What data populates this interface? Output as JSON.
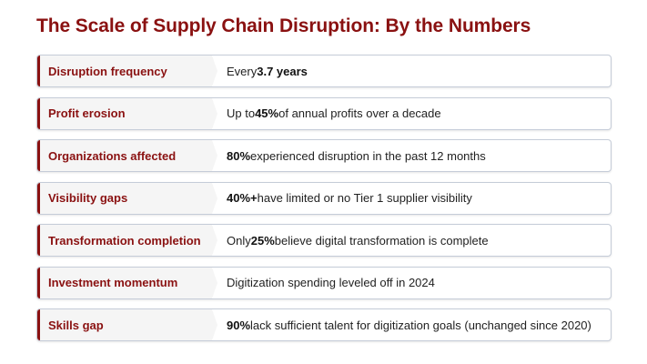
{
  "title": "The Scale of Supply Chain Disruption: By the Numbers",
  "colors": {
    "accent": "#8a1111",
    "label_bg": "#f5f5f5",
    "border": "#c5ccd8"
  },
  "rows": [
    {
      "label": "Disruption frequency",
      "pre": "Every ",
      "bold": "3.7 years",
      "post": ""
    },
    {
      "label": "Profit erosion",
      "pre": "Up to ",
      "bold": "45%",
      "post": " of annual profits over a decade"
    },
    {
      "label": "Organizations affected",
      "pre": "",
      "bold": "80%",
      "post": " experienced disruption in the past 12 months"
    },
    {
      "label": "Visibility gaps",
      "pre": "",
      "bold": "40%+",
      "post": " have limited or no Tier 1 supplier visibility"
    },
    {
      "label": "Transformation completion",
      "pre": "Only ",
      "bold": "25%",
      "post": " believe digital transformation is complete"
    },
    {
      "label": "Investment momentum",
      "pre": "Digitization spending leveled off in 2024",
      "bold": "",
      "post": ""
    },
    {
      "label": "Skills gap",
      "pre": "",
      "bold": "90%",
      "post": " lack sufficient talent for digitization goals (unchanged since 2020)"
    }
  ]
}
